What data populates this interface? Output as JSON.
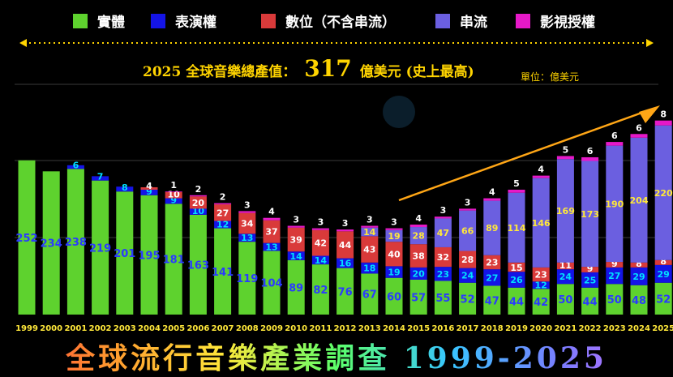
{
  "legend": [
    {
      "label": "實體",
      "color": "#5ed22e"
    },
    {
      "label": "表演權",
      "color": "#1414e6"
    },
    {
      "label": "數位（不含串流）",
      "color": "#d93a3a"
    },
    {
      "label": "串流",
      "color": "#6b5fe0"
    },
    {
      "label": "影視授權",
      "color": "#e619c8"
    }
  ],
  "headline": {
    "pre": "2025 全球音樂總產值：",
    "value": "317",
    "post": "億美元 (史上最高)"
  },
  "unit_label": "單位：億美元",
  "bottom_title": "全球流行音樂產業調查 1999-2025",
  "chart_data": {
    "type": "bar",
    "stacked": true,
    "title": "全球流行音樂產業調查 1999-2025",
    "ylabel": "單位：億美元",
    "ylim": [
      0,
      320
    ],
    "grid": true,
    "legend_position": "top",
    "categories": [
      "1999",
      "2000",
      "2001",
      "2002",
      "2003",
      "2004",
      "2005",
      "2006",
      "2007",
      "2008",
      "2009",
      "2010",
      "2011",
      "2012",
      "2013",
      "2014",
      "2015",
      "2016",
      "2017",
      "2018",
      "2019",
      "2020",
      "2021",
      "2022",
      "2023",
      "2024",
      "2025"
    ],
    "series": [
      {
        "name": "實體",
        "color": "#5ed22e",
        "values": [
          252,
          234,
          238,
          219,
          201,
          195,
          181,
          163,
          141,
          119,
          104,
          89,
          82,
          76,
          67,
          60,
          57,
          55,
          52,
          47,
          44,
          42,
          50,
          44,
          50,
          48,
          52
        ]
      },
      {
        "name": "表演權",
        "color": "#1414e6",
        "values": [
          0,
          0,
          6,
          7,
          8,
          9,
          9,
          10,
          12,
          13,
          13,
          14,
          14,
          16,
          18,
          19,
          20,
          23,
          24,
          27,
          26,
          12,
          24,
          25,
          27,
          29,
          29
        ]
      },
      {
        "name": "數位（不含串流）",
        "color": "#d93a3a",
        "values": [
          0,
          0,
          0,
          0,
          0,
          4,
          10,
          20,
          27,
          34,
          37,
          39,
          42,
          44,
          43,
          40,
          38,
          32,
          28,
          23,
          15,
          23,
          11,
          9,
          9,
          8,
          8
        ]
      },
      {
        "name": "串流",
        "color": "#6b5fe0",
        "values": [
          0,
          0,
          0,
          0,
          0,
          0,
          0,
          0,
          0,
          0,
          0,
          0,
          0,
          0,
          14,
          19,
          28,
          47,
          66,
          89,
          114,
          146,
          169,
          173,
          190,
          204,
          220
        ]
      },
      {
        "name": "影視授權",
        "color": "#e619c8",
        "values": [
          0,
          0,
          0,
          0,
          0,
          0,
          1,
          2,
          2,
          3,
          4,
          3,
          3,
          3,
          3,
          3,
          4,
          3,
          3,
          4,
          5,
          4,
          5,
          6,
          6,
          6,
          8
        ]
      }
    ]
  }
}
